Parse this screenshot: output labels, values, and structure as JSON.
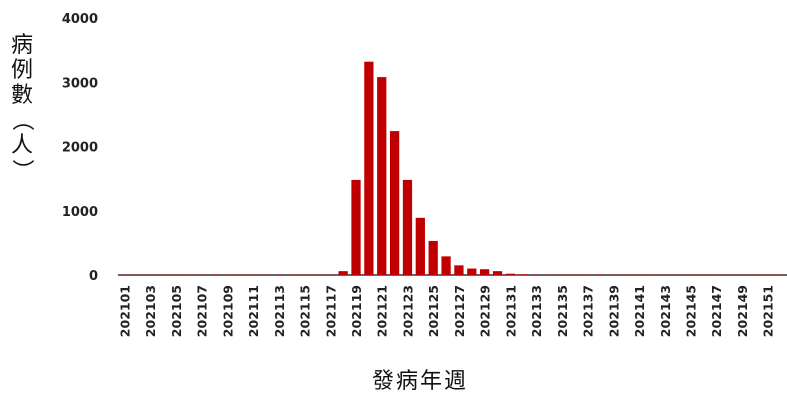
{
  "chart_data": {
    "type": "bar",
    "title": "",
    "xlabel": "發病年週",
    "ylabel": "病例數（人）",
    "ylim": [
      0,
      4000
    ],
    "y_ticks": [
      "0",
      "1000",
      "2000",
      "3000",
      "4000"
    ],
    "grid": false,
    "bar_color": "#c00000",
    "x_tick_labels": [
      "202101",
      "202103",
      "202105",
      "202107",
      "202109",
      "202111",
      "202113",
      "202115",
      "202117",
      "202119",
      "202121",
      "202123",
      "202125",
      "202127",
      "202129",
      "202131",
      "202133",
      "202135",
      "202137",
      "202139",
      "202141",
      "202143",
      "202145",
      "202147",
      "202149",
      "202151"
    ],
    "categories": [
      "202101",
      "202102",
      "202103",
      "202104",
      "202105",
      "202106",
      "202107",
      "202108",
      "202109",
      "202110",
      "202111",
      "202112",
      "202113",
      "202114",
      "202115",
      "202116",
      "202117",
      "202118",
      "202119",
      "202120",
      "202121",
      "202122",
      "202123",
      "202124",
      "202125",
      "202126",
      "202127",
      "202128",
      "202129",
      "202130",
      "202131",
      "202132",
      "202133",
      "202134",
      "202135",
      "202136",
      "202137",
      "202138",
      "202139",
      "202140",
      "202141",
      "202142",
      "202143",
      "202144",
      "202145",
      "202146",
      "202147",
      "202148",
      "202149",
      "202150",
      "202151",
      "202152"
    ],
    "values": [
      5,
      5,
      5,
      5,
      5,
      5,
      5,
      5,
      5,
      5,
      5,
      5,
      5,
      5,
      5,
      5,
      5,
      60,
      1480,
      3320,
      3080,
      2240,
      1480,
      890,
      530,
      290,
      150,
      100,
      90,
      60,
      20,
      10,
      5,
      5,
      5,
      5,
      5,
      5,
      5,
      5,
      5,
      5,
      5,
      5,
      5,
      5,
      5,
      5,
      5,
      5,
      5,
      5
    ]
  }
}
